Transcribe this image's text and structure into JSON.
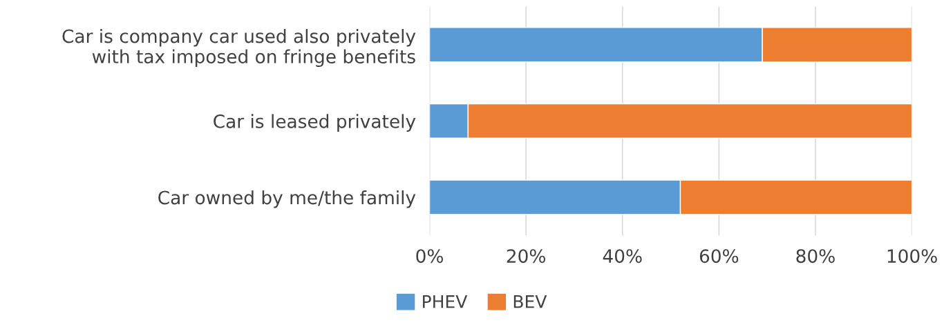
{
  "chart_data": {
    "type": "bar",
    "orientation": "horizontal",
    "stacked": true,
    "categories": [
      "Car is company car used also privately\nwith tax imposed on fringe benefits",
      "Car is leased privately",
      "Car owned by me/the family"
    ],
    "series": [
      {
        "name": "PHEV",
        "color": "#5b9bd5",
        "values": [
          69,
          8,
          52
        ]
      },
      {
        "name": "BEV",
        "color": "#ed7d31",
        "values": [
          31,
          92,
          48
        ]
      }
    ],
    "xlim": [
      0,
      100
    ],
    "xticks": [
      {
        "value": 0,
        "label": "0%"
      },
      {
        "value": 20,
        "label": "20%"
      },
      {
        "value": 40,
        "label": "40%"
      },
      {
        "value": 60,
        "label": "60%"
      },
      {
        "value": 80,
        "label": "80%"
      },
      {
        "value": 100,
        "label": "100%"
      }
    ],
    "grid": "x",
    "legend": "bottom"
  }
}
